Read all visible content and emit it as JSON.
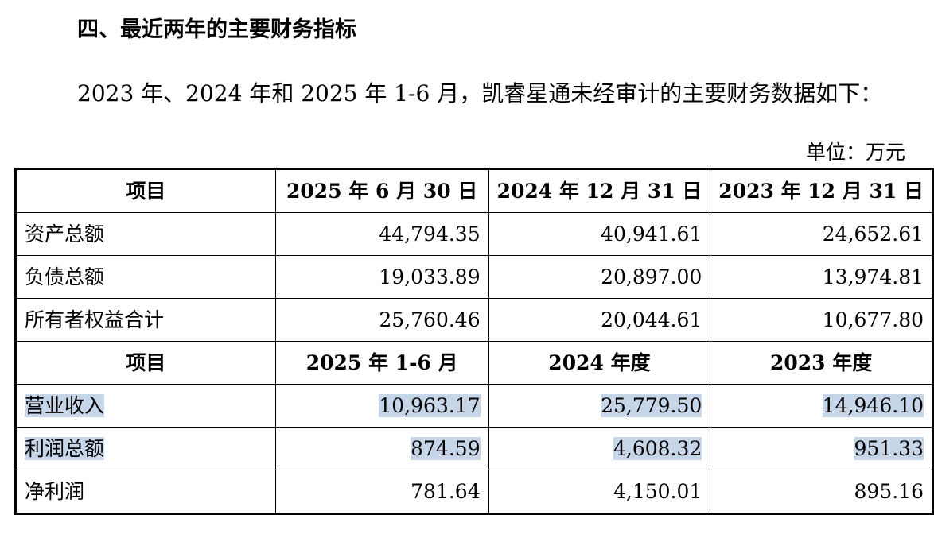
{
  "heading": "四、最近两年的主要财务指标",
  "intro": "2023 年、2024 年和 2025 年 1-6 月，凯睿星通未经审计的主要财务数据如下：",
  "unit": "单位：万元",
  "colors": {
    "highlight": "#c7d5e8",
    "border": "#000000",
    "text": "#000000"
  },
  "table": {
    "balance_header": [
      "项目",
      "2025 年 6 月 30 日",
      "2024 年 12 月 31 日",
      "2023 年 12 月 31 日"
    ],
    "balance_rows": [
      {
        "label": "资产总额",
        "values": [
          "44,794.35",
          "40,941.61",
          "24,652.61"
        ]
      },
      {
        "label": "负债总额",
        "values": [
          "19,033.89",
          "20,897.00",
          "13,974.81"
        ]
      },
      {
        "label": "所有者权益合计",
        "values": [
          "25,760.46",
          "20,044.61",
          "10,677.80"
        ]
      }
    ],
    "income_header": [
      "项目",
      "2025 年 1-6 月",
      "2024 年度",
      "2023 年度"
    ],
    "income_rows": [
      {
        "label": "营业收入",
        "values": [
          "10,963.17",
          "25,779.50",
          "14,946.10"
        ],
        "highlighted": true
      },
      {
        "label": "利润总额",
        "values": [
          "874.59",
          "4,608.32",
          "951.33"
        ],
        "highlighted": true
      },
      {
        "label": "净利润",
        "values": [
          "781.64",
          "4,150.01",
          "895.16"
        ],
        "highlighted": false
      }
    ]
  }
}
